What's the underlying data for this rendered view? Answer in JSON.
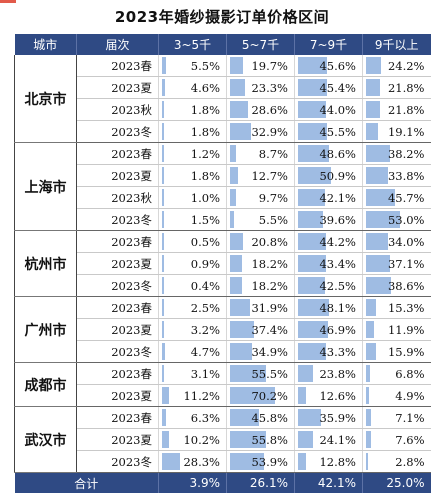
{
  "chart_data": {
    "type": "table",
    "title": "2023年婚纱摄影订单价格区间",
    "columns": [
      "城市",
      "届次",
      "3~5千",
      "5~7千",
      "7~9千",
      "9千以上"
    ],
    "bar_color": "#9fbce3",
    "header_color": "#2f4a84",
    "accent_color": "#e25a4a",
    "groups": [
      {
        "city": "北京市",
        "rows": [
          {
            "period": "2023春",
            "values": [
              5.5,
              19.7,
              45.6,
              24.2
            ]
          },
          {
            "period": "2023夏",
            "values": [
              4.6,
              23.3,
              45.4,
              21.8
            ]
          },
          {
            "period": "2023秋",
            "values": [
              1.8,
              28.6,
              44.0,
              21.8
            ]
          },
          {
            "period": "2023冬",
            "values": [
              1.8,
              32.9,
              45.5,
              19.1
            ]
          }
        ]
      },
      {
        "city": "上海市",
        "rows": [
          {
            "period": "2023春",
            "values": [
              1.2,
              8.7,
              48.6,
              38.2
            ]
          },
          {
            "period": "2023夏",
            "values": [
              1.8,
              12.7,
              50.9,
              33.8
            ]
          },
          {
            "period": "2023秋",
            "values": [
              1.0,
              9.7,
              42.1,
              45.7
            ]
          },
          {
            "period": "2023冬",
            "values": [
              1.5,
              5.5,
              39.6,
              53.0
            ]
          }
        ]
      },
      {
        "city": "杭州市",
        "rows": [
          {
            "period": "2023春",
            "values": [
              0.5,
              20.8,
              44.2,
              34.0
            ]
          },
          {
            "period": "2023夏",
            "values": [
              0.9,
              18.2,
              43.4,
              37.1
            ]
          },
          {
            "period": "2023冬",
            "values": [
              0.4,
              18.2,
              42.5,
              38.6
            ]
          }
        ]
      },
      {
        "city": "广州市",
        "rows": [
          {
            "period": "2023春",
            "values": [
              2.5,
              31.9,
              48.1,
              15.3
            ]
          },
          {
            "period": "2023夏",
            "values": [
              3.2,
              37.4,
              46.9,
              11.9
            ]
          },
          {
            "period": "2023冬",
            "values": [
              4.7,
              34.9,
              43.3,
              15.9
            ]
          }
        ]
      },
      {
        "city": "成都市",
        "rows": [
          {
            "period": "2023春",
            "values": [
              3.1,
              55.5,
              23.8,
              6.8
            ]
          },
          {
            "period": "2023夏",
            "values": [
              11.2,
              70.2,
              12.6,
              4.9
            ]
          }
        ]
      },
      {
        "city": "武汉市",
        "rows": [
          {
            "period": "2023春",
            "values": [
              6.3,
              45.8,
              35.9,
              7.1
            ]
          },
          {
            "period": "2023夏",
            "values": [
              10.2,
              55.8,
              24.1,
              7.6
            ]
          },
          {
            "period": "2023冬",
            "values": [
              28.3,
              53.9,
              12.8,
              2.8
            ]
          }
        ]
      }
    ],
    "total": {
      "label": "合计",
      "values": [
        3.9,
        26.1,
        42.1,
        25.0
      ]
    }
  }
}
